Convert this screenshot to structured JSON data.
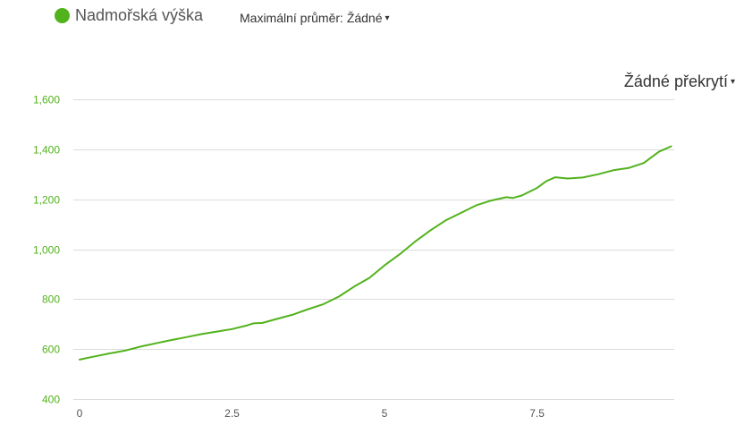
{
  "legend": {
    "label": "Nadmořská výška",
    "color": "#52b21c"
  },
  "smoothing": {
    "label": "Maximální průměr:",
    "value": "Žádné",
    "caret": "▾"
  },
  "overlay": {
    "label": "Žádné překrytí",
    "caret": "▾"
  },
  "colors": {
    "line": "#52b21c",
    "grid": "#dcdcdc",
    "ytick": "#52b21c",
    "xtick": "#555555"
  },
  "chart_data": {
    "type": "line",
    "title": "",
    "xlabel": "",
    "ylabel": "",
    "xlim": [
      0,
      9.75
    ],
    "ylim": [
      400,
      1600
    ],
    "x_ticks": [
      0,
      2.5,
      5,
      7.5
    ],
    "x_tick_labels": [
      "0",
      "2.5",
      "5",
      "7.5"
    ],
    "y_ticks": [
      400,
      600,
      800,
      1000,
      1200,
      1400,
      1600
    ],
    "y_tick_labels": [
      "400",
      "600",
      "800",
      "1,000",
      "1,200",
      "1,400",
      "1,600"
    ],
    "grid": true,
    "series": [
      {
        "name": "Nadmořská výška",
        "x": [
          0,
          0.25,
          0.5,
          0.75,
          1.0,
          1.25,
          1.5,
          1.75,
          2.0,
          2.25,
          2.5,
          2.75,
          2.85,
          3.0,
          3.25,
          3.5,
          3.75,
          4.0,
          4.25,
          4.5,
          4.75,
          5.0,
          5.25,
          5.5,
          5.75,
          6.0,
          6.25,
          6.5,
          6.75,
          7.0,
          7.1,
          7.25,
          7.5,
          7.65,
          7.8,
          8.0,
          8.25,
          8.5,
          8.75,
          9.0,
          9.25,
          9.5,
          9.7
        ],
        "y": [
          558,
          571,
          583,
          594,
          610,
          623,
          636,
          648,
          660,
          670,
          680,
          695,
          703,
          705,
          722,
          738,
          760,
          780,
          810,
          850,
          885,
          935,
          980,
          1030,
          1075,
          1115,
          1145,
          1175,
          1195,
          1208,
          1205,
          1215,
          1245,
          1272,
          1288,
          1283,
          1287,
          1300,
          1316,
          1325,
          1345,
          1390,
          1412
        ]
      }
    ]
  }
}
